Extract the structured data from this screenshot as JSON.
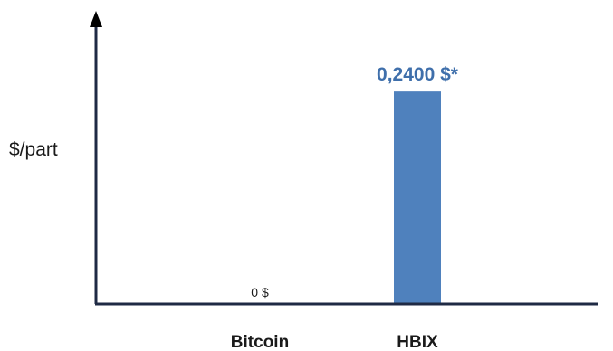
{
  "chart_data": {
    "type": "bar",
    "categories": [
      "Bitcoin",
      "HBIX"
    ],
    "values": [
      0,
      0.24
    ],
    "data_labels": [
      "0 $",
      "0,2400 $*"
    ],
    "ylabel": "$/part",
    "xlabel": "",
    "title": "",
    "ylim": [
      0,
      0.28
    ],
    "grid": false,
    "colors": {
      "bar": "#4f81bd",
      "axis": "#1f2a44",
      "highlight_label": "#3f6fab"
    }
  }
}
